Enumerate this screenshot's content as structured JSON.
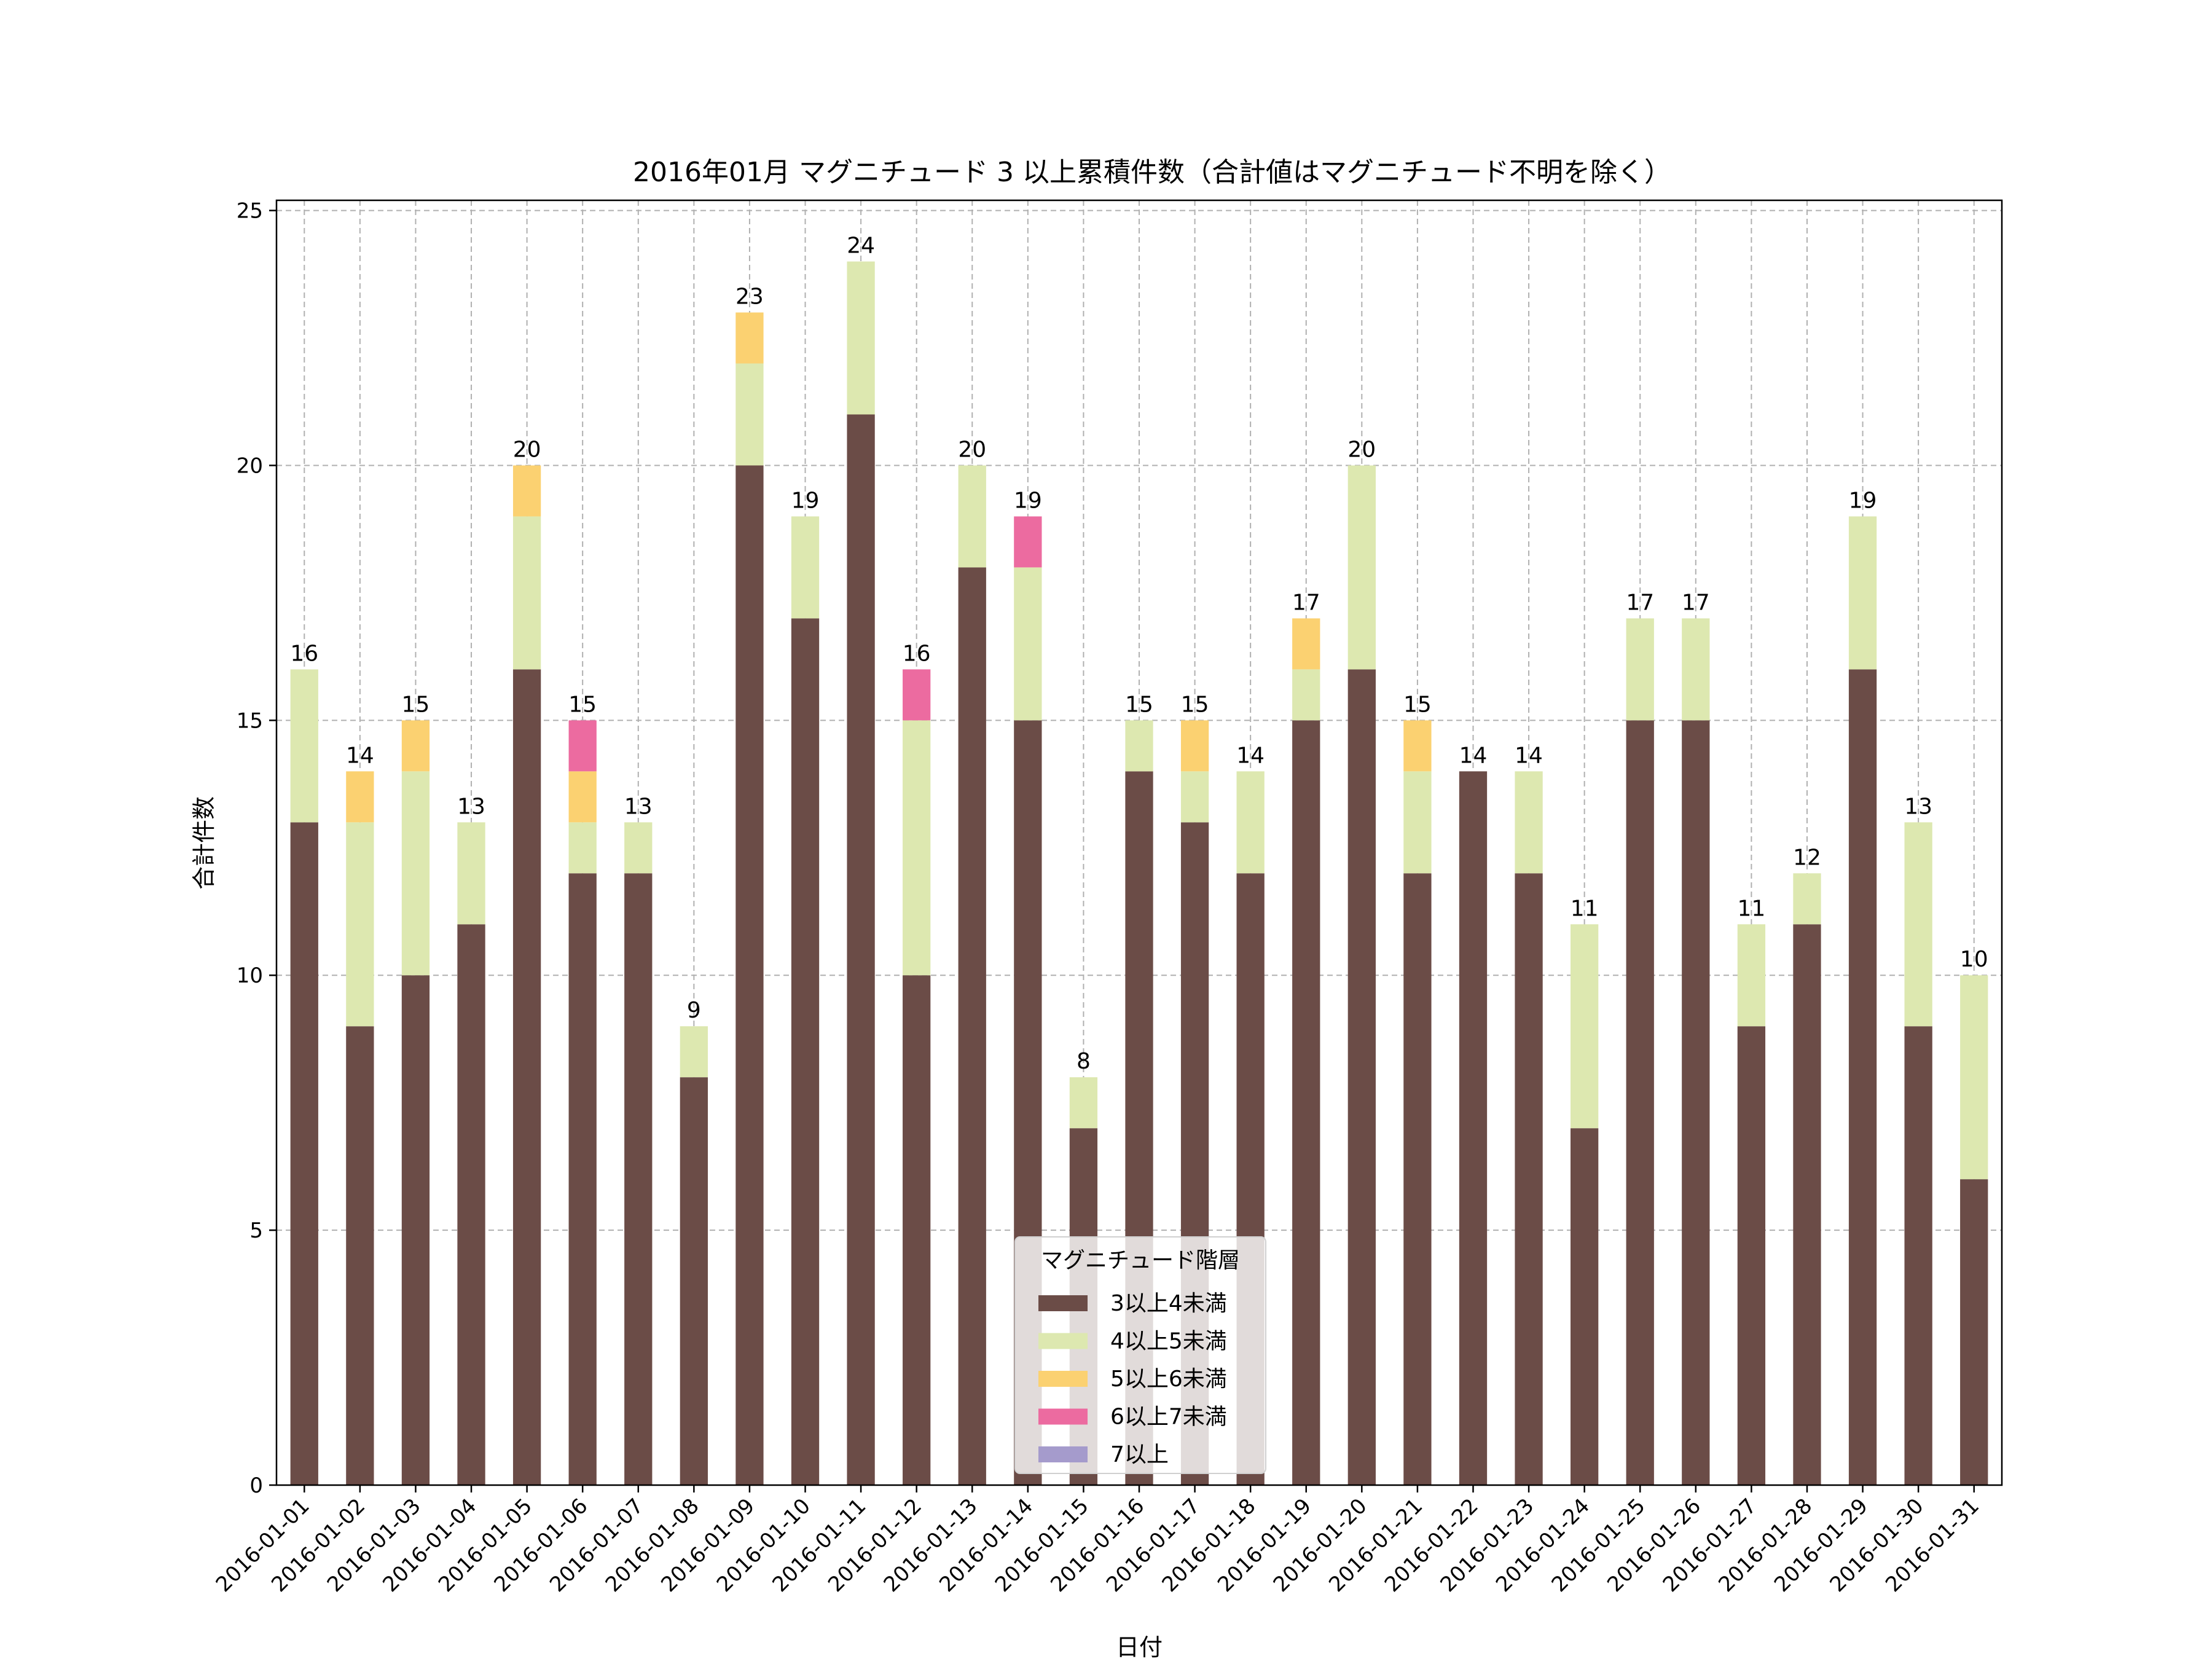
{
  "chart_data": {
    "type": "bar",
    "stacked": true,
    "title": "2016年01月 マグニチュード 3 以上累積件数（合計値はマグニチュード不明を除く）",
    "xlabel": "日付",
    "ylabel": "合計件数",
    "ylim": [
      0,
      25.2
    ],
    "yticks": [
      0,
      5,
      10,
      15,
      20,
      25
    ],
    "grid": true,
    "legend": {
      "title": "マグニチュード階層",
      "position": "bottom-center"
    },
    "categories": [
      "2016-01-01",
      "2016-01-02",
      "2016-01-03",
      "2016-01-04",
      "2016-01-05",
      "2016-01-06",
      "2016-01-07",
      "2016-01-08",
      "2016-01-09",
      "2016-01-10",
      "2016-01-11",
      "2016-01-12",
      "2016-01-13",
      "2016-01-14",
      "2016-01-15",
      "2016-01-16",
      "2016-01-17",
      "2016-01-18",
      "2016-01-19",
      "2016-01-20",
      "2016-01-21",
      "2016-01-22",
      "2016-01-23",
      "2016-01-24",
      "2016-01-25",
      "2016-01-26",
      "2016-01-27",
      "2016-01-28",
      "2016-01-29",
      "2016-01-30",
      "2016-01-31"
    ],
    "series": [
      {
        "name": "3以上4未満",
        "color": "#6b4c47",
        "values": [
          13,
          9,
          10,
          11,
          16,
          12,
          12,
          8,
          20,
          17,
          21,
          10,
          18,
          15,
          7,
          14,
          13,
          12,
          15,
          16,
          12,
          14,
          12,
          7,
          15,
          15,
          9,
          11,
          16,
          9,
          6
        ]
      },
      {
        "name": "4以上5未満",
        "color": "#dde8b0",
        "values": [
          3,
          4,
          4,
          2,
          3,
          1,
          1,
          1,
          2,
          2,
          3,
          5,
          2,
          3,
          1,
          1,
          1,
          2,
          1,
          4,
          2,
          0,
          2,
          4,
          2,
          2,
          2,
          1,
          3,
          4,
          4
        ]
      },
      {
        "name": "5以上6未満",
        "color": "#fbd171",
        "values": [
          0,
          1,
          1,
          0,
          1,
          1,
          0,
          0,
          1,
          0,
          0,
          0,
          0,
          0,
          0,
          0,
          1,
          0,
          1,
          0,
          1,
          0,
          0,
          0,
          0,
          0,
          0,
          0,
          0,
          0,
          0
        ]
      },
      {
        "name": "6以上7未満",
        "color": "#ec6ba0",
        "values": [
          0,
          0,
          0,
          0,
          0,
          1,
          0,
          0,
          0,
          0,
          0,
          1,
          0,
          1,
          0,
          0,
          0,
          0,
          0,
          0,
          0,
          0,
          0,
          0,
          0,
          0,
          0,
          0,
          0,
          0,
          0
        ]
      },
      {
        "name": "7以上",
        "color": "#a59bcc",
        "values": [
          0,
          0,
          0,
          0,
          0,
          0,
          0,
          0,
          0,
          0,
          0,
          0,
          0,
          0,
          0,
          0,
          0,
          0,
          0,
          0,
          0,
          0,
          0,
          0,
          0,
          0,
          0,
          0,
          0,
          0,
          0
        ]
      }
    ],
    "totals": [
      16,
      14,
      15,
      13,
      20,
      15,
      13,
      9,
      23,
      19,
      24,
      16,
      20,
      19,
      8,
      15,
      15,
      14,
      17,
      20,
      15,
      14,
      14,
      11,
      17,
      17,
      11,
      12,
      19,
      13,
      10
    ]
  }
}
